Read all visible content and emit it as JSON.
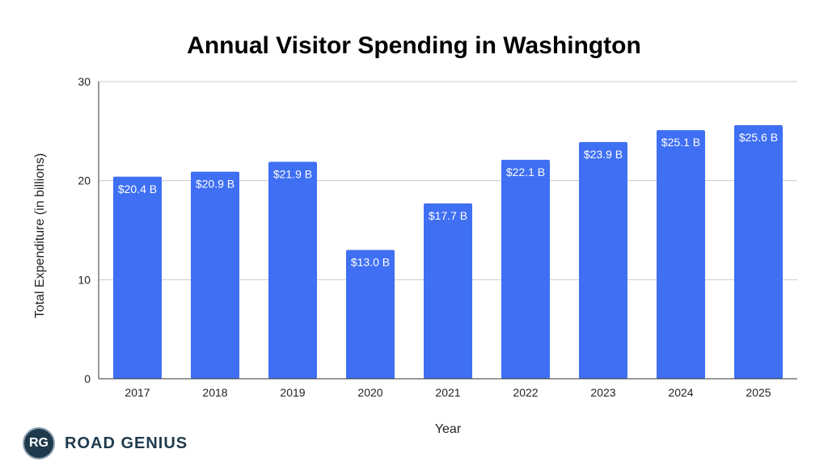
{
  "chart_data": {
    "type": "bar",
    "title": "Annual Visitor Spending in Washington",
    "xlabel": "Year",
    "ylabel": "Total Expenditure (in billions)",
    "ylim": [
      0,
      30
    ],
    "yticks": [
      0,
      10,
      20,
      30
    ],
    "grid": true,
    "categories": [
      "2017",
      "2018",
      "2019",
      "2020",
      "2021",
      "2022",
      "2023",
      "2024",
      "2025"
    ],
    "values": [
      20.4,
      20.9,
      21.9,
      13.0,
      17.7,
      22.1,
      23.9,
      25.1,
      25.6
    ],
    "data_labels": [
      "$20.4 B",
      "$20.9 B",
      "$21.9 B",
      "$13.0 B",
      "$17.7 B",
      "$22.1 B",
      "$23.9 B",
      "$25.1 B",
      "$25.6 B"
    ],
    "bar_color": "#3f6ff2"
  },
  "logo": {
    "badge": "RG",
    "text": "ROAD GENIUS"
  }
}
